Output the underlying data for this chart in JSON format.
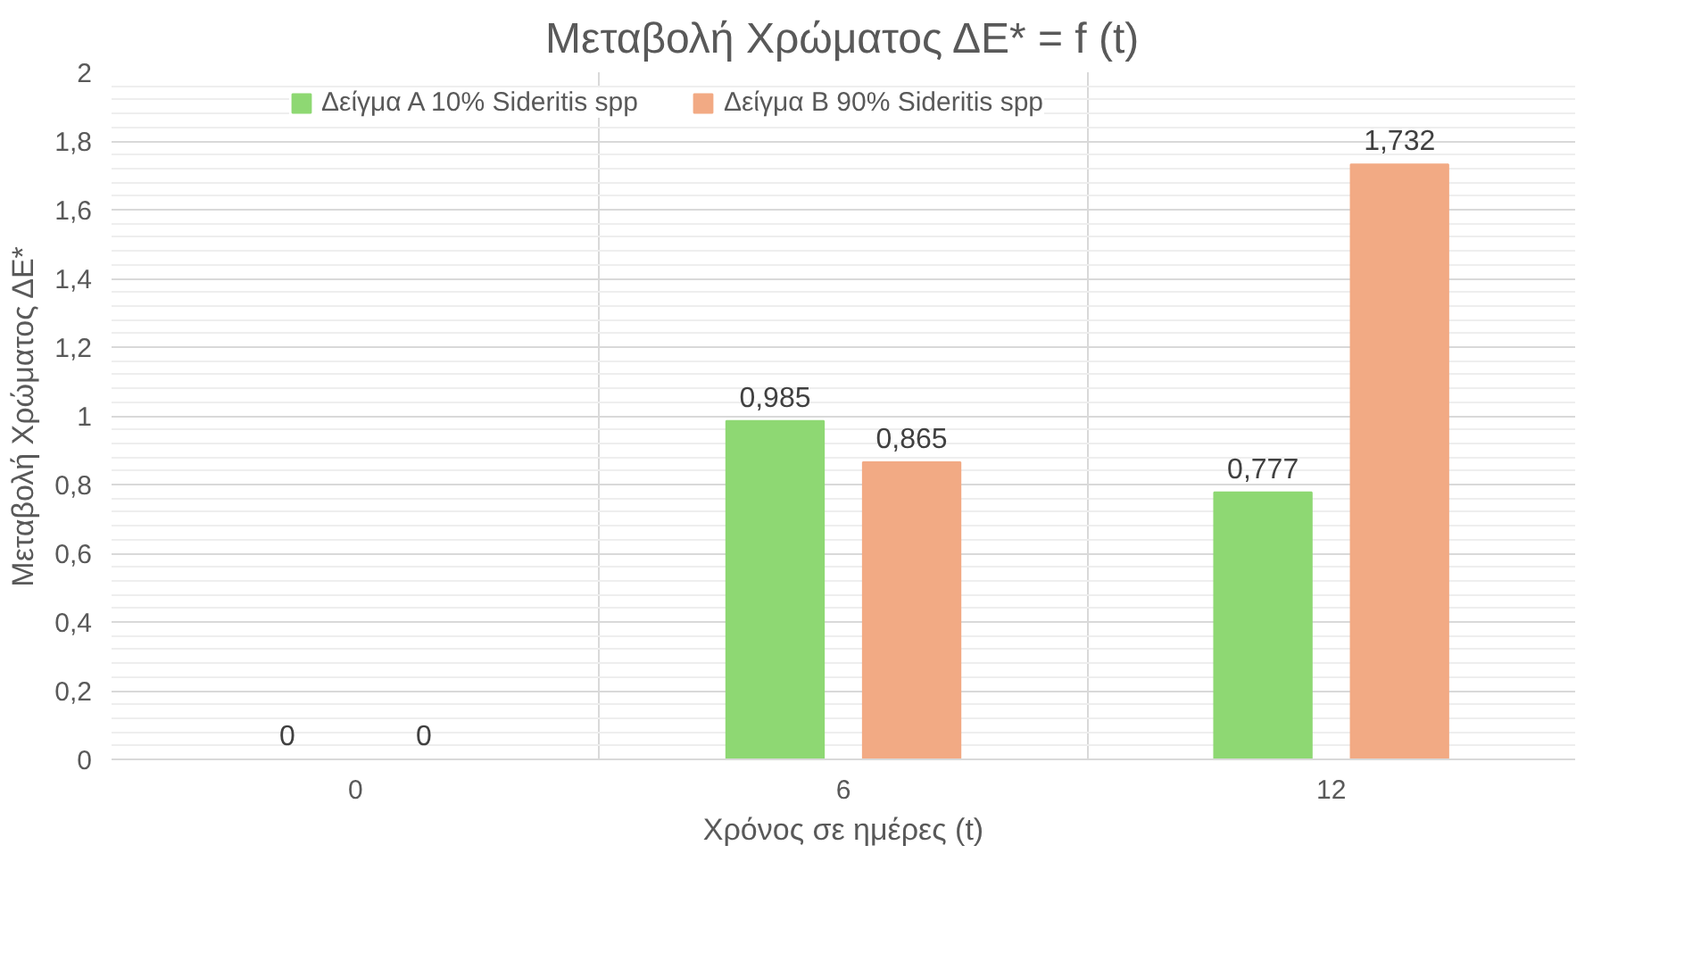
{
  "chart_data": {
    "type": "bar",
    "title": "Μεταβολή Χρώματος ΔΕ* = f (t)",
    "xlabel": "Χρόνος σε ημέρες (t)",
    "ylabel": "Μεταβολή Χρώματος ΔΕ*",
    "categories": [
      "0",
      "6",
      "12"
    ],
    "series": [
      {
        "name": "Δείγμα Α 10% Sideritis spp",
        "color": "#8ed873",
        "values": [
          0,
          0.985,
          0.777
        ],
        "value_labels": [
          "0",
          "0,985",
          "0,777"
        ]
      },
      {
        "name": "Δείγμα Β 90% Sideritis spp",
        "color": "#f2aa84",
        "values": [
          0,
          0.865,
          1.732
        ],
        "value_labels": [
          "0",
          "0,865",
          "1,732"
        ]
      }
    ],
    "ylim": [
      0,
      2
    ],
    "yticks": [
      0,
      {
        "value": 0.2,
        "label": "0,2"
      },
      {
        "value": 0.4,
        "label": "0,4"
      },
      {
        "value": 0.6,
        "label": "0,6"
      },
      {
        "value": 0.8,
        "label": "0,8"
      },
      1,
      {
        "value": 1.2,
        "label": "1,2"
      },
      {
        "value": 1.4,
        "label": "1,4"
      },
      {
        "value": 1.6,
        "label": "1,6"
      },
      {
        "value": 1.8,
        "label": "1,8"
      },
      2
    ],
    "grid": true,
    "legend": "top"
  }
}
